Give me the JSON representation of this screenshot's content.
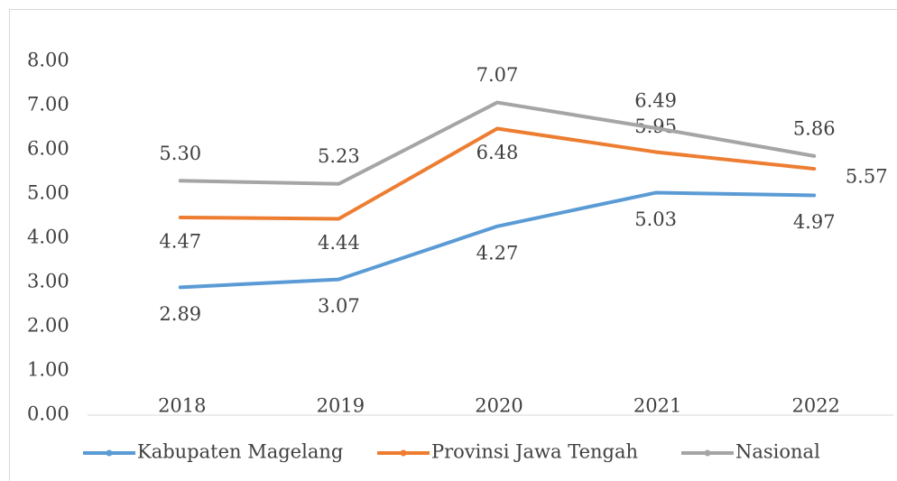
{
  "chart_data": {
    "type": "line",
    "categories": [
      "2018",
      "2019",
      "2020",
      "2021",
      "2022"
    ],
    "series": [
      {
        "name": "Kabupaten Magelang",
        "color": "#5b9bd5",
        "values": [
          2.89,
          3.07,
          4.27,
          5.03,
          4.97
        ],
        "value_labels": [
          "2.89",
          "3.07",
          "4.27",
          "5.03",
          "4.97"
        ]
      },
      {
        "name": "Provinsi Jawa Tengah",
        "color": "#ed7d31",
        "values": [
          4.47,
          4.44,
          6.48,
          5.95,
          5.57
        ],
        "value_labels": [
          "4.47",
          "4.44",
          "6.48",
          "5.95",
          "5.57"
        ]
      },
      {
        "name": "Nasional",
        "color": "#a5a5a5",
        "values": [
          5.3,
          5.23,
          7.07,
          6.49,
          5.86
        ],
        "value_labels": [
          "5.30",
          "5.23",
          "7.07",
          "6.49",
          "5.86"
        ]
      }
    ],
    "ylim": [
      0,
      8
    ],
    "yticks": [
      {
        "value": 0,
        "label": "0.00"
      },
      {
        "value": 1,
        "label": "1.00"
      },
      {
        "value": 2,
        "label": "2.00"
      },
      {
        "value": 3,
        "label": "3.00"
      },
      {
        "value": 4,
        "label": "4.00"
      },
      {
        "value": 5,
        "label": "5.00"
      },
      {
        "value": 6,
        "label": "6.00"
      },
      {
        "value": 7,
        "label": "7.00"
      },
      {
        "value": 8,
        "label": "8.00"
      }
    ],
    "grid": false,
    "legend": "bottom"
  }
}
